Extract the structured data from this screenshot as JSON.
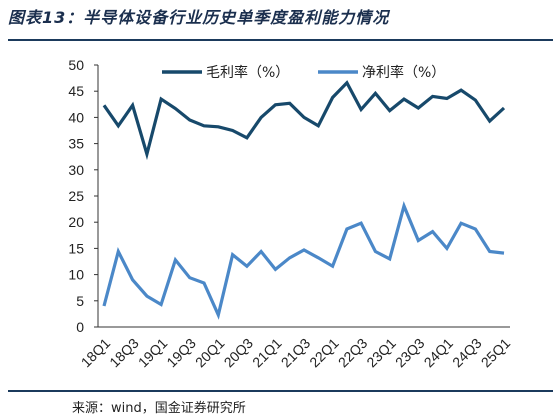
{
  "title": "图表13：半导体设备行业历史单季度盈利能力情况",
  "source": "来源：wind，国金证券研究所",
  "colors": {
    "rule": "#1b3a5c",
    "series_gross": "#17496b",
    "series_net": "#4b88c8"
  },
  "chart_data": {
    "type": "line",
    "x": [
      "18Q1",
      "18Q2",
      "18Q3",
      "18Q4",
      "19Q1",
      "19Q2",
      "19Q3",
      "19Q4",
      "20Q1",
      "20Q2",
      "20Q3",
      "20Q4",
      "21Q1",
      "21Q2",
      "21Q3",
      "21Q4",
      "22Q1",
      "22Q2",
      "22Q3",
      "22Q4",
      "23Q1",
      "23Q2",
      "23Q3",
      "23Q4",
      "24Q1",
      "24Q2",
      "24Q3",
      "24Q4",
      "25Q1"
    ],
    "x_tick_labels": [
      "18Q1",
      "18Q3",
      "19Q1",
      "19Q3",
      "20Q1",
      "20Q3",
      "21Q1",
      "21Q3",
      "22Q1",
      "22Q3",
      "23Q1",
      "23Q3",
      "24Q1",
      "24Q3",
      "25Q1"
    ],
    "series": [
      {
        "name": "毛利率（%）",
        "values": [
          42.3,
          38.4,
          42.3,
          33.0,
          43.5,
          41.7,
          39.5,
          38.4,
          38.2,
          37.5,
          36.1,
          40.0,
          42.4,
          42.7,
          40.0,
          38.4,
          43.8,
          46.6,
          41.5,
          44.6,
          41.3,
          43.5,
          41.8,
          44.0,
          43.6,
          45.2,
          43.3,
          39.3,
          41.8
        ]
      },
      {
        "name": "净利率（%）",
        "values": [
          4.0,
          14.4,
          9.0,
          5.9,
          4.3,
          12.8,
          9.4,
          8.4,
          2.3,
          13.8,
          11.6,
          14.4,
          11.0,
          13.2,
          14.7,
          13.2,
          11.6,
          18.7,
          19.8,
          14.4,
          13.0,
          23.1,
          16.5,
          18.2,
          15.0,
          19.8,
          18.7,
          14.4,
          14.1
        ]
      }
    ],
    "ylim": [
      0,
      50
    ],
    "yticks": [
      0,
      5,
      10,
      15,
      20,
      25,
      30,
      35,
      40,
      45,
      50
    ],
    "grid": false,
    "legend_position": "top"
  }
}
